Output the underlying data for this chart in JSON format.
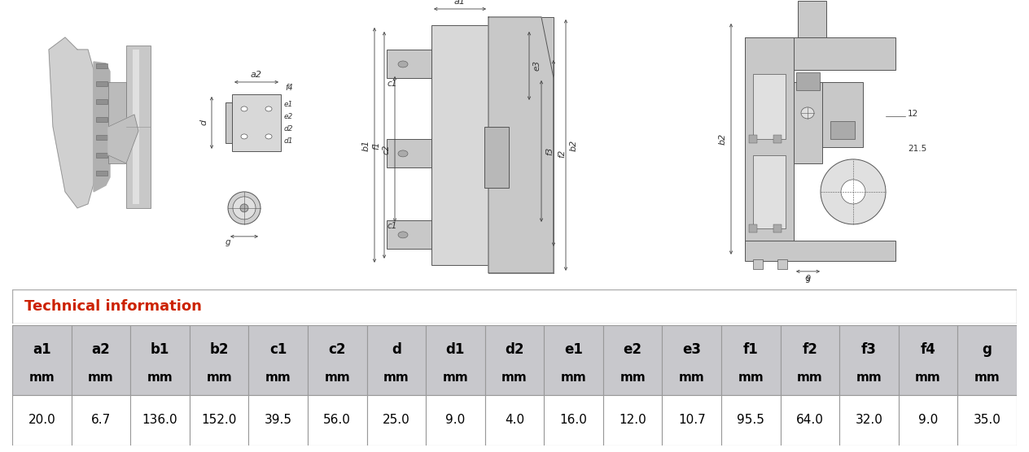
{
  "title_section": "Technical information",
  "title_color": "#cc2200",
  "headers_line1": [
    "a1",
    "a2",
    "b1",
    "b2",
    "c1",
    "c2",
    "d",
    "d1",
    "d2",
    "e1",
    "e2",
    "e3",
    "f1",
    "f2",
    "f3",
    "f4",
    "g"
  ],
  "headers_line2": [
    "mm",
    "mm",
    "mm",
    "mm",
    "mm",
    "mm",
    "mm",
    "mm",
    "mm",
    "mm",
    "mm",
    "mm",
    "mm",
    "mm",
    "mm",
    "mm",
    "mm"
  ],
  "values": [
    "20.0",
    "6.7",
    "136.0",
    "152.0",
    "39.5",
    "56.0",
    "25.0",
    "9.0",
    "4.0",
    "16.0",
    "12.0",
    "10.7",
    "95.5",
    "64.0",
    "32.0",
    "9.0",
    "35.0"
  ],
  "header_bg": "#c8c8cc",
  "value_bg": "#ffffff",
  "border_color": "#999999",
  "outer_border_color": "#666666",
  "table_text_color": "#000000",
  "header_fontsize": 12,
  "value_fontsize": 11,
  "title_fontsize": 13,
  "section_border_color": "#999999",
  "background_color": "#ffffff",
  "drawing_area_bg": "#ffffff",
  "dim_line_color": "#444444",
  "dim_text_color": "#333333",
  "part_fill_light": "#d8d8d8",
  "part_fill_mid": "#c8c8c8",
  "part_fill_dark": "#b8b8b8",
  "part_edge": "#555555"
}
